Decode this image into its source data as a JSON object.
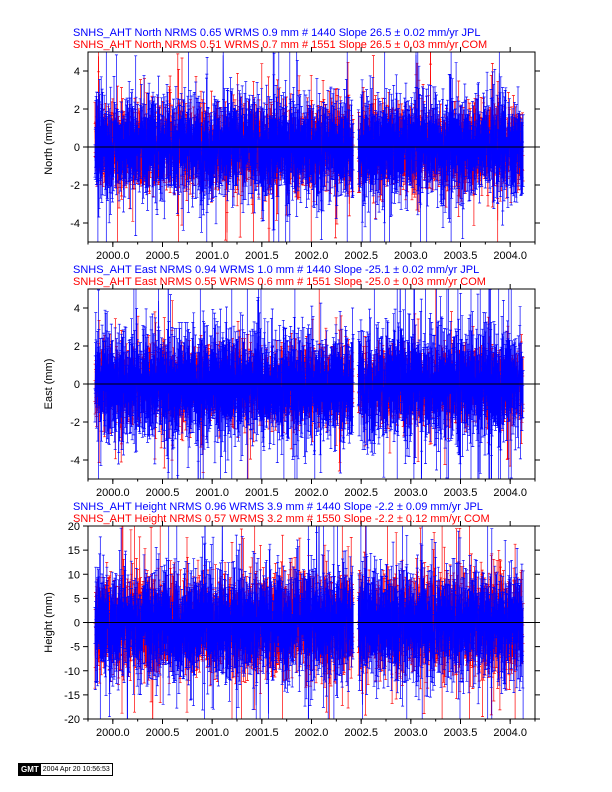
{
  "chart_data": [
    {
      "type": "scatter",
      "component": "north",
      "ylabel": "North (mm)",
      "xlim": [
        1999.75,
        2004.25
      ],
      "ylim": [
        -5,
        5
      ],
      "x_ticks": [
        "2000.0",
        "2000.5",
        "2001.0",
        "2001.5",
        "2002.0",
        "2002.5",
        "2003.0",
        "2003.5",
        "2004.0"
      ],
      "y_ticks": [
        "-4",
        "-2",
        "0",
        "2",
        "4"
      ],
      "grid": false,
      "series": [
        {
          "name": "SNHS_AHT North NRMS 0.65 WRMS  0.9 mm # 1440 Slope   26.5 ±  0.02 mm/yr JPL",
          "color": "#0000ff",
          "points": 1440,
          "rms": 0.9,
          "slope": 26.5
        },
        {
          "name": "SNHS_AHT North NRMS 0.51 WRMS  0.7 mm # 1551 Slope   26.5 ±  0.03 mm/yr COM",
          "color": "#ff0000",
          "points": 1551,
          "rms": 0.7,
          "slope": 26.5
        }
      ]
    },
    {
      "type": "scatter",
      "component": "east",
      "ylabel": "East (mm)",
      "xlim": [
        1999.75,
        2004.25
      ],
      "ylim": [
        -5,
        5
      ],
      "x_ticks": [
        "2000.0",
        "2000.5",
        "2001.0",
        "2001.5",
        "2002.0",
        "2002.5",
        "2003.0",
        "2003.5",
        "2004.0"
      ],
      "y_ticks": [
        "-4",
        "-2",
        "0",
        "2",
        "4"
      ],
      "grid": false,
      "series": [
        {
          "name": "SNHS_AHT East NRMS 0.94 WRMS  1.0 mm # 1440 Slope  -25.1 ±  0.02 mm/yr JPL",
          "color": "#0000ff",
          "points": 1440,
          "rms": 1.0,
          "slope": -25.1
        },
        {
          "name": "SNHS_AHT East NRMS 0.55 WRMS  0.6 mm # 1551 Slope  -25.0 ±  0.03 mm/yr COM",
          "color": "#ff0000",
          "points": 1551,
          "rms": 0.6,
          "slope": -25.0
        }
      ]
    },
    {
      "type": "scatter",
      "component": "height",
      "ylabel": "Height (mm)",
      "xlim": [
        1999.75,
        2004.25
      ],
      "ylim": [
        -20,
        20
      ],
      "x_ticks": [
        "2000.0",
        "2000.5",
        "2001.0",
        "2001.5",
        "2002.0",
        "2002.5",
        "2003.0",
        "2003.5",
        "2004.0"
      ],
      "y_ticks": [
        "-20",
        "-15",
        "-10",
        "-5",
        "0",
        "5",
        "10",
        "15",
        "20"
      ],
      "grid": false,
      "series": [
        {
          "name": "SNHS_AHT Height NRMS 0.96 WRMS  3.9 mm # 1440 Slope   -2.2 ±  0.09 mm/yr JPL",
          "color": "#0000ff",
          "points": 1440,
          "rms": 3.9,
          "slope": -2.2
        },
        {
          "name": "SNHS_AHT Height NRMS 0.57 WRMS  3.2 mm # 1550 Slope   -2.2 ±  0.12 mm/yr COM",
          "color": "#ff0000",
          "points": 1550,
          "rms": 3.2,
          "slope": -2.2
        }
      ]
    }
  ],
  "data_span": [
    1999.82,
    2004.13
  ],
  "data_gap": [
    2002.42,
    2002.47
  ],
  "footer": {
    "logo": "GMT",
    "timestamp": "2004 Apr 20 10:56:53"
  }
}
